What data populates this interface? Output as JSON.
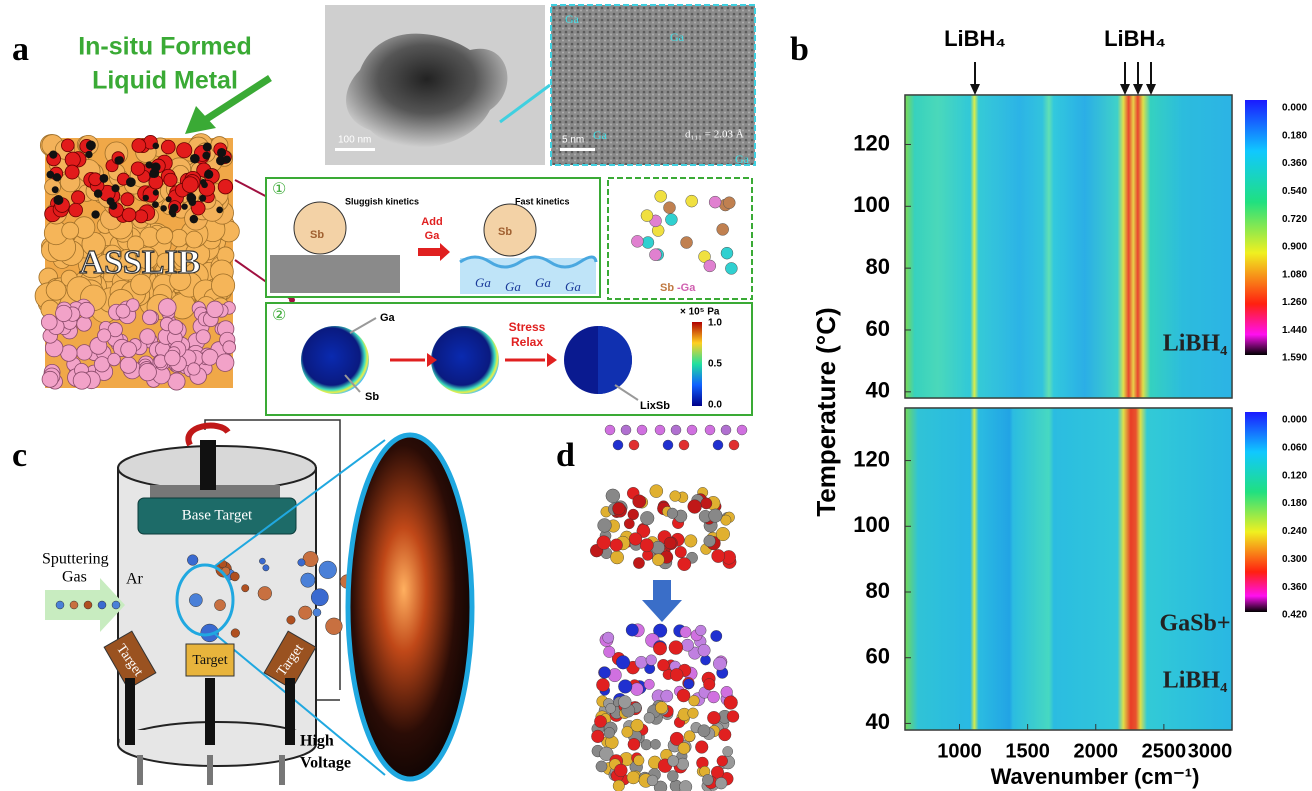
{
  "panel_a": {
    "label": "a",
    "callout": [
      "In-situ Formed",
      "Liquid Metal"
    ],
    "stack_label": "ASSLIB",
    "scale_bars": [
      "100 nm",
      "5 nm"
    ],
    "tem_labels": [
      "Ga",
      "Ga",
      "Ga",
      "Ga"
    ],
    "lattice": "d₁₁₁ = 2.03 Å",
    "mechanism_1": {
      "index": "①",
      "left": "Sluggish kinetics",
      "right": "Fast kinetics",
      "step": [
        "Add",
        "Ga"
      ],
      "atoms": [
        "Sb",
        "Sb"
      ],
      "surface": [
        "Ga",
        "Ga",
        "Ga",
        "Ga"
      ],
      "alloy": [
        "Sb",
        "-Ga"
      ]
    },
    "mechanism_2": {
      "index": "②",
      "top": "Ga",
      "bottom": "Sb",
      "step": [
        "Stress",
        "Relax"
      ],
      "product": "LixSb",
      "unit": "× 10⁵ Pa",
      "scale": [
        "1.0",
        "0.5",
        "0.0"
      ]
    }
  },
  "panel_b": {
    "label": "b",
    "peaks": [
      "LiBH₄",
      "LiBH₄"
    ],
    "ylabel": "Temperature  (°C)",
    "xlabel": "Wavenumber  (cm⁻¹)",
    "xticks": [
      1000,
      1500,
      2000,
      2500,
      3000
    ],
    "yticks": [
      40,
      60,
      80,
      100,
      120
    ],
    "xlim": [
      600,
      3000
    ],
    "ylim": [
      38,
      136
    ],
    "top": {
      "label": [
        "LiBH₄"
      ],
      "colorbar": [
        "0.000",
        "0.180",
        "0.360",
        "0.540",
        "0.720",
        "0.900",
        "1.080",
        "1.260",
        "1.440",
        "1.590"
      ]
    },
    "bottom": {
      "label": [
        "GaSb+",
        "LiBH₄"
      ],
      "colorbar": [
        "0.000",
        "0.060",
        "0.120",
        "0.180",
        "0.240",
        "0.300",
        "0.360",
        "0.420"
      ]
    }
  },
  "panel_c": {
    "label": "c",
    "base": "Base Target",
    "gas": [
      "Sputtering",
      "Gas"
    ],
    "ar": "Ar",
    "targets": [
      "Target",
      "Target",
      "Target"
    ],
    "voltage": [
      "High",
      "Voltage"
    ]
  },
  "panel_d": {
    "label": "d"
  }
}
